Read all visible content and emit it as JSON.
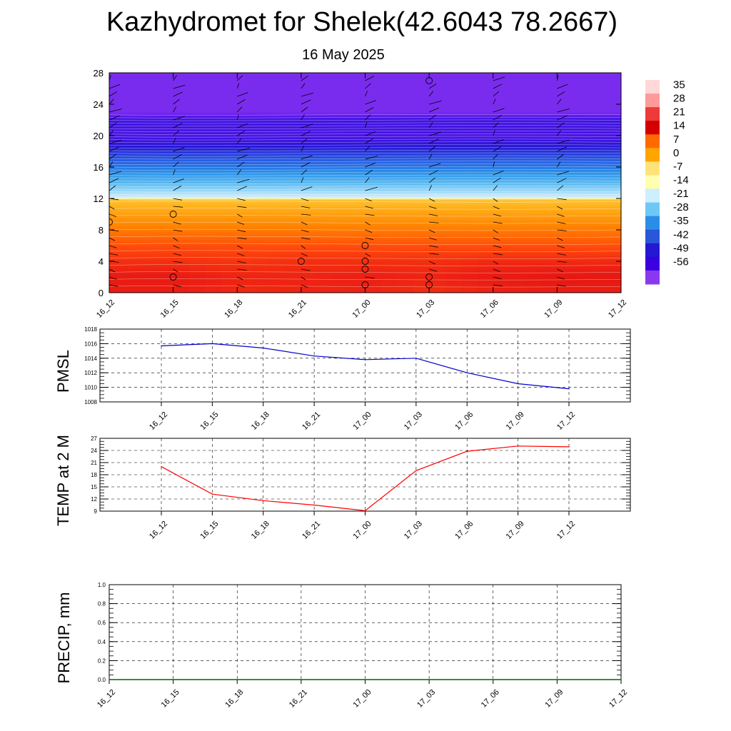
{
  "header": {
    "title": "Kazhydromet for Shelek(42.6043 78.2667)",
    "date": "16 May 2025"
  },
  "chart_data": [
    {
      "type": "heatmap",
      "name": "cross-section",
      "x_ticks": [
        "16_12",
        "16_15",
        "16_18",
        "16_21",
        "17_00",
        "17_03",
        "17_06",
        "17_09",
        "17_12"
      ],
      "y_ticks": [
        0,
        4,
        8,
        12,
        16,
        20,
        24,
        28
      ],
      "ylim": [
        0,
        28
      ],
      "colorbar": {
        "labels": [
          "35",
          "28",
          "21",
          "14",
          "7",
          "0",
          "-7",
          "-14",
          "-21",
          "-28",
          "-35",
          "-42",
          "-49",
          "-56"
        ],
        "colors": [
          "#ffd8d8",
          "#ff9a9a",
          "#ee3a3a",
          "#d40000",
          "#ff6a00",
          "#ffa500",
          "#ffe37a",
          "#ffffb0",
          "#cdefff",
          "#6ec8f5",
          "#2a8ee8",
          "#2a56d8",
          "#2418d0",
          "#3a00e0",
          "#8a38f0"
        ]
      },
      "rows": [
        {
          "level": 0,
          "temps": [
            21,
            21,
            19,
            20,
            20,
            18,
            20,
            21,
            21
          ]
        },
        {
          "level": 2,
          "temps": [
            22,
            22,
            20,
            20,
            21,
            20,
            22,
            23,
            23
          ]
        },
        {
          "level": 4,
          "temps": [
            18,
            18,
            17,
            18,
            18,
            18,
            19,
            19,
            19
          ]
        },
        {
          "level": 6,
          "temps": [
            13,
            13,
            13,
            13,
            13,
            13,
            13,
            13,
            13
          ]
        },
        {
          "level": 8,
          "temps": [
            8,
            8,
            8,
            8,
            8,
            8,
            8,
            8,
            8
          ]
        },
        {
          "level": 10,
          "temps": [
            3,
            3,
            3,
            3,
            3,
            3,
            3,
            3,
            3
          ]
        },
        {
          "level": 11.9,
          "temps": [
            -2,
            -2,
            -2,
            -2,
            -2,
            -2,
            -2,
            -2,
            -2
          ]
        },
        {
          "level": 12.1,
          "temps": [
            -15,
            -15,
            -15,
            -15,
            -15,
            -15,
            -15,
            -15,
            -15
          ]
        },
        {
          "level": 14,
          "temps": [
            -27,
            -27,
            -27,
            -27,
            -27,
            -27,
            -27,
            -27,
            -27
          ]
        },
        {
          "level": 16,
          "temps": [
            -38,
            -38,
            -38,
            -38,
            -38,
            -38,
            -38,
            -38,
            -38
          ]
        },
        {
          "level": 18,
          "temps": [
            -46,
            -46,
            -46,
            -46,
            -46,
            -46,
            -46,
            -46,
            -46
          ]
        },
        {
          "level": 20,
          "temps": [
            -54,
            -54,
            -54,
            -54,
            -54,
            -54,
            -54,
            -54,
            -54
          ]
        },
        {
          "level": 22,
          "temps": [
            -52,
            -52,
            -52,
            -52,
            -52,
            -52,
            -52,
            -52,
            -52
          ]
        },
        {
          "level": 23,
          "temps": [
            -60,
            -60,
            -60,
            -60,
            -60,
            -60,
            -60,
            -60,
            -60
          ]
        },
        {
          "level": 28,
          "temps": [
            -60,
            -60,
            -60,
            -60,
            -60,
            -60,
            -60,
            -60,
            -60
          ]
        }
      ],
      "wind_calm_markers": [
        [
          0,
          9
        ],
        [
          1,
          10
        ],
        [
          1,
          2
        ],
        [
          3,
          4
        ],
        [
          4,
          6
        ],
        [
          4,
          4
        ],
        [
          4,
          3
        ],
        [
          4,
          1
        ],
        [
          5,
          27
        ],
        [
          5,
          2
        ],
        [
          5,
          1
        ]
      ]
    },
    {
      "type": "line",
      "name": "pmsl",
      "ylabel": "PMSL",
      "categories": [
        "16_12",
        "16_15",
        "16_18",
        "16_21",
        "17_00",
        "17_03",
        "17_06",
        "17_09",
        "17_12"
      ],
      "values": [
        1015.7,
        1016.0,
        1015.4,
        1014.3,
        1013.8,
        1014.0,
        1012.0,
        1010.5,
        1009.8
      ],
      "ylim": [
        1008,
        1018
      ],
      "yticks": [
        1008,
        1010,
        1012,
        1014,
        1016,
        1018
      ],
      "color": "#0000cc"
    },
    {
      "type": "line",
      "name": "temp",
      "ylabel": "TEMP at 2 M",
      "categories": [
        "16_12",
        "16_15",
        "16_18",
        "16_21",
        "17_00",
        "17_03",
        "17_06",
        "17_09",
        "17_12"
      ],
      "values": [
        20.0,
        13.2,
        11.6,
        10.5,
        9.1,
        19.0,
        23.8,
        25.1,
        24.9
      ],
      "ylim": [
        9,
        27
      ],
      "yticks": [
        9,
        12,
        15,
        18,
        21,
        24,
        27
      ],
      "color": "#ff0000"
    },
    {
      "type": "line",
      "name": "precip",
      "ylabel": "PRECIP, mm",
      "categories": [
        "16_12",
        "16_15",
        "16_18",
        "16_21",
        "17_00",
        "17_03",
        "17_06",
        "17_09",
        "17_12"
      ],
      "values": [
        0,
        0,
        0,
        0,
        0,
        0,
        0,
        0,
        0
      ],
      "ylim": [
        0,
        1
      ],
      "yticks": [
        "0.0",
        "0.2",
        "0.4",
        "0.6",
        "0.8",
        "1.0"
      ],
      "color": "#006400"
    }
  ]
}
